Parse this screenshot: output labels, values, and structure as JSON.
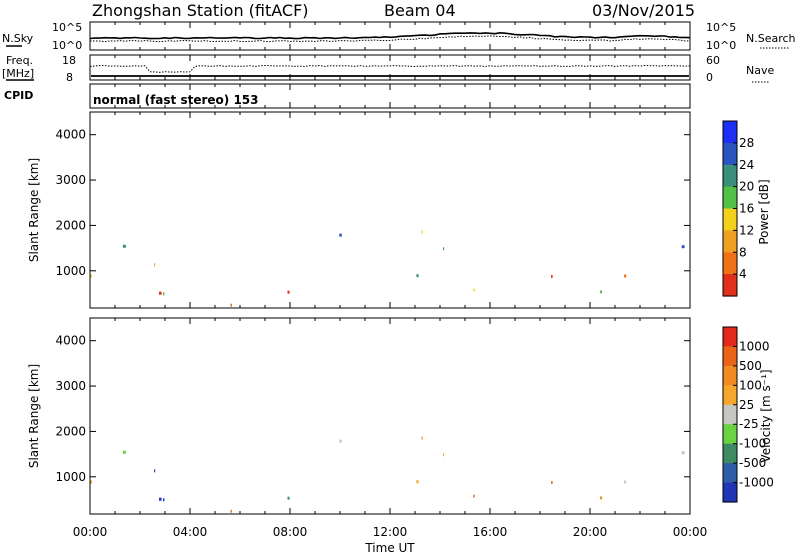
{
  "header": {
    "station": "Zhongshan Station (fitACF)",
    "beam": "Beam 04",
    "date": "03/Nov/2015"
  },
  "top_panels": {
    "nsky": {
      "label": "N.Sky",
      "ticks": [
        "10^5",
        "10^0"
      ]
    },
    "nsearch": {
      "label": "N.Search",
      "ticks": [
        "10^5",
        "10^0"
      ]
    },
    "freq": {
      "label_line1": "Freq.",
      "label_line2": "[MHz]",
      "ticks": [
        "18",
        "8"
      ]
    },
    "nave": {
      "label": "Nave",
      "ticks": [
        "60",
        "0"
      ]
    },
    "cpid": {
      "label": "CPID",
      "value": "normal (fast stereo) 153"
    }
  },
  "chart_data": [
    {
      "type": "heatmap",
      "name": "power",
      "ylabel": "Slant Range [km]",
      "xlabel": "",
      "ylim": [
        180,
        4500
      ],
      "yticks": [
        1000,
        2000,
        3000,
        4000
      ],
      "xlim": [
        0,
        24
      ],
      "colorbar": {
        "label": "Power [dB]",
        "range": [
          0,
          32
        ],
        "ticks": [
          "4",
          "8",
          "12",
          "16",
          "20",
          "24",
          "28"
        ]
      }
    },
    {
      "type": "heatmap",
      "name": "velocity",
      "ylabel": "Slant Range [km]",
      "xlabel": "Time UT",
      "ylim": [
        180,
        4500
      ],
      "yticks": [
        1000,
        2000,
        3000,
        4000
      ],
      "xlim": [
        0,
        24
      ],
      "xtick_labels": [
        "00:00",
        "04:00",
        "08:00",
        "12:00",
        "16:00",
        "20:00",
        "00:00"
      ],
      "colorbar": {
        "label": "Velocity [m s⁻¹]",
        "ticks": [
          "1000",
          "500",
          "100",
          "25",
          "-25",
          "-100",
          "-500",
          "-1000"
        ]
      }
    }
  ],
  "colors": {
    "power_scale": [
      "#1e2ff5",
      "#2a54c0",
      "#3a8f7a",
      "#54c048",
      "#f2d11d",
      "#f0a020",
      "#ef7316",
      "#e0301b"
    ],
    "velocity_scale": [
      "#2136b6",
      "#2e5ea8",
      "#3f8a63",
      "#6bd243",
      "#c7c7c1",
      "#f4a72b",
      "#f08a21",
      "#ea6418",
      "#e3281c"
    ]
  }
}
